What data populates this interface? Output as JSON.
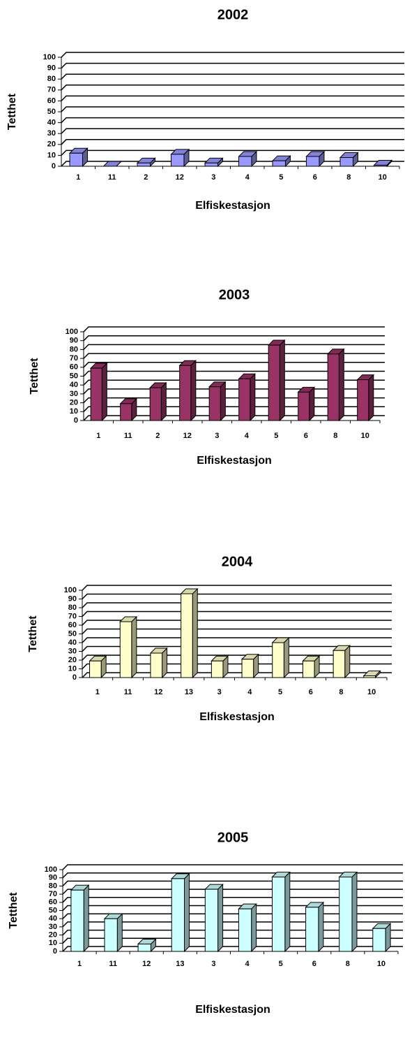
{
  "chart_data": [
    {
      "type": "bar",
      "title": "2002",
      "y_label": "Tetthet",
      "x_label": "Elfiskestasjon",
      "categories": [
        "1",
        "11",
        "2",
        "12",
        "3",
        "4",
        "5",
        "6",
        "8",
        "10"
      ],
      "values": [
        12,
        0,
        3,
        11,
        3,
        9,
        5,
        9,
        8,
        1
      ],
      "color": "#9999ff",
      "ylim": [
        0,
        100
      ],
      "yticks": [
        0,
        10,
        20,
        30,
        40,
        50,
        60,
        70,
        80,
        90,
        100
      ],
      "grid": true
    },
    {
      "type": "bar",
      "title": "2003",
      "y_label": "Tetthet",
      "x_label": "Elfiskestasjon",
      "categories": [
        "1",
        "11",
        "2",
        "12",
        "3",
        "4",
        "5",
        "6",
        "8",
        "10"
      ],
      "values": [
        59,
        19,
        37,
        62,
        38,
        47,
        85,
        32,
        75,
        46
      ],
      "color": "#993366",
      "ylim": [
        0,
        100
      ],
      "yticks": [
        0,
        10,
        20,
        30,
        40,
        50,
        60,
        70,
        80,
        90,
        100
      ],
      "grid": true
    },
    {
      "type": "bar",
      "title": "2004",
      "y_label": "Tetthet",
      "x_label": "Elfiskestasjon",
      "categories": [
        "1",
        "11",
        "12",
        "13",
        "3",
        "4",
        "5",
        "6",
        "8",
        "10"
      ],
      "values": [
        19,
        64,
        28,
        96,
        19,
        21,
        40,
        19,
        31,
        2
      ],
      "color": "#ffffcc",
      "ylim": [
        0,
        100
      ],
      "yticks": [
        0,
        10,
        20,
        30,
        40,
        50,
        60,
        70,
        80,
        90,
        100
      ],
      "grid": true
    },
    {
      "type": "bar",
      "title": "2005",
      "y_label": "Tetthet",
      "x_label": "Elfiskestasjon",
      "categories": [
        "1",
        "11",
        "12",
        "13",
        "3",
        "4",
        "5",
        "6",
        "8",
        "10"
      ],
      "values": [
        75,
        40,
        9,
        89,
        76,
        52,
        91,
        54,
        91,
        28
      ],
      "color": "#ccffff",
      "ylim": [
        0,
        100
      ],
      "yticks": [
        0,
        10,
        20,
        30,
        40,
        50,
        60,
        70,
        80,
        90,
        100
      ],
      "grid": true
    }
  ]
}
